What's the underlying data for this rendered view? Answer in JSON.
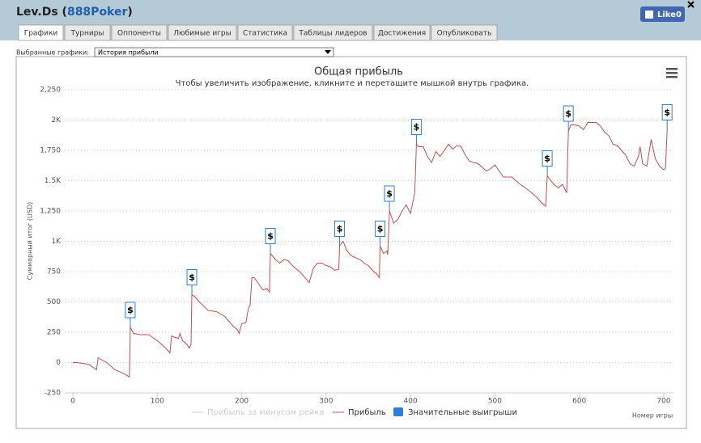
{
  "header": {
    "title_parts": [
      "Lev.Ds (",
      "888Poker",
      ")"
    ],
    "like_label": "Like",
    "like_count": 0
  },
  "tabs": [
    "Графики",
    "Турниры",
    "Оппоненты",
    "Любимые игры",
    "Статистика",
    "Таблицы лидеров",
    "Достижения",
    "Опубликовать"
  ],
  "selector": {
    "label": "Выбранные графики:",
    "value": "История прибыли"
  },
  "chart_data": {
    "type": "line",
    "title": "Общая прибыль",
    "subtitle": "Чтобы увеличить изображение, кликните и перетащите мышкой внутрь графика.",
    "y_label": "Суммарный итог (USD)",
    "x_label": "Номер игры",
    "grid": true,
    "xlim": [
      0,
      700
    ],
    "xticks": [
      0,
      100,
      200,
      300,
      400,
      500,
      600,
      700
    ],
    "ylim": [
      -250,
      2250
    ],
    "yticks": [
      -250,
      0,
      250,
      500,
      750,
      {
        "value": 1000,
        "label": "1K"
      },
      {
        "value": 1250,
        "label": "1,250"
      },
      {
        "value": 1500,
        "label": "1.5K"
      },
      {
        "value": 1750,
        "label": "1,750"
      },
      {
        "value": 2000,
        "label": "2K"
      },
      {
        "value": 2250,
        "label": "2,250"
      }
    ],
    "series": [
      {
        "name": "Прибыль за минусом рейка",
        "color": "#cccccc",
        "visible": false
      },
      {
        "name": "Прибыль",
        "color": "#c0504d",
        "x": [
          0,
          5,
          10,
          15,
          20,
          28,
          30,
          35,
          40,
          50,
          60,
          65,
          67,
          68,
          72,
          80,
          90,
          100,
          110,
          115,
          117,
          120,
          125,
          127,
          130,
          135,
          138,
          140,
          141,
          145,
          150,
          160,
          170,
          180,
          190,
          195,
          197,
          200,
          205,
          208,
          210,
          212,
          215,
          220,
          225,
          230,
          233,
          234,
          240,
          245,
          250,
          255,
          260,
          270,
          275,
          280,
          285,
          290,
          295,
          300,
          305,
          310,
          315,
          316,
          320,
          325,
          330,
          340,
          345,
          350,
          355,
          360,
          363,
          364,
          368,
          372,
          373,
          375,
          380,
          385,
          390,
          395,
          400,
          405,
          407,
          410,
          415,
          420,
          425,
          430,
          435,
          440,
          445,
          450,
          455,
          460,
          465,
          470,
          480,
          490,
          495,
          500,
          510,
          520,
          530,
          540,
          550,
          555,
          560,
          562,
          565,
          570,
          575,
          580,
          585,
          587,
          590,
          595,
          600,
          605,
          610,
          615,
          620,
          625,
          630,
          635,
          640,
          645,
          650,
          655,
          660,
          665,
          670,
          672,
          675,
          680,
          685,
          690,
          695,
          700,
          702,
          704
        ],
        "values": [
          0,
          0,
          -5,
          -10,
          -20,
          -60,
          40,
          20,
          0,
          -60,
          -90,
          -110,
          -120,
          290,
          240,
          230,
          230,
          180,
          120,
          80,
          220,
          210,
          200,
          240,
          180,
          150,
          120,
          150,
          560,
          540,
          500,
          430,
          420,
          380,
          300,
          270,
          240,
          320,
          330,
          450,
          470,
          700,
          700,
          650,
          600,
          610,
          580,
          900,
          850,
          820,
          850,
          840,
          800,
          740,
          700,
          660,
          780,
          820,
          820,
          800,
          790,
          760,
          770,
          960,
          1000,
          920,
          880,
          850,
          820,
          800,
          760,
          730,
          700,
          960,
          900,
          920,
          890,
          1250,
          1150,
          1180,
          1250,
          1300,
          1230,
          1400,
          1800,
          1780,
          1780,
          1700,
          1650,
          1740,
          1700,
          1750,
          1800,
          1760,
          1790,
          1780,
          1710,
          1660,
          1640,
          1580,
          1600,
          1630,
          1530,
          1530,
          1470,
          1420,
          1360,
          1320,
          1290,
          1540,
          1510,
          1470,
          1440,
          1470,
          1400,
          1910,
          1960,
          1960,
          1950,
          1920,
          1980,
          1980,
          1980,
          1950,
          1900,
          1870,
          1800,
          1790,
          1750,
          1710,
          1640,
          1620,
          1700,
          1780,
          1640,
          1620,
          1840,
          1680,
          1620,
          1590,
          1600,
          1920
        ]
      },
      {
        "name": "Значительные выигрыши",
        "color": "#2f7ed8",
        "type": "flags",
        "label": "$",
        "x": [
          68,
          141,
          234,
          316,
          364,
          375,
          407,
          562,
          587,
          704
        ],
        "values": [
          290,
          560,
          900,
          960,
          960,
          1250,
          1800,
          1540,
          1910,
          1920
        ]
      }
    ]
  }
}
